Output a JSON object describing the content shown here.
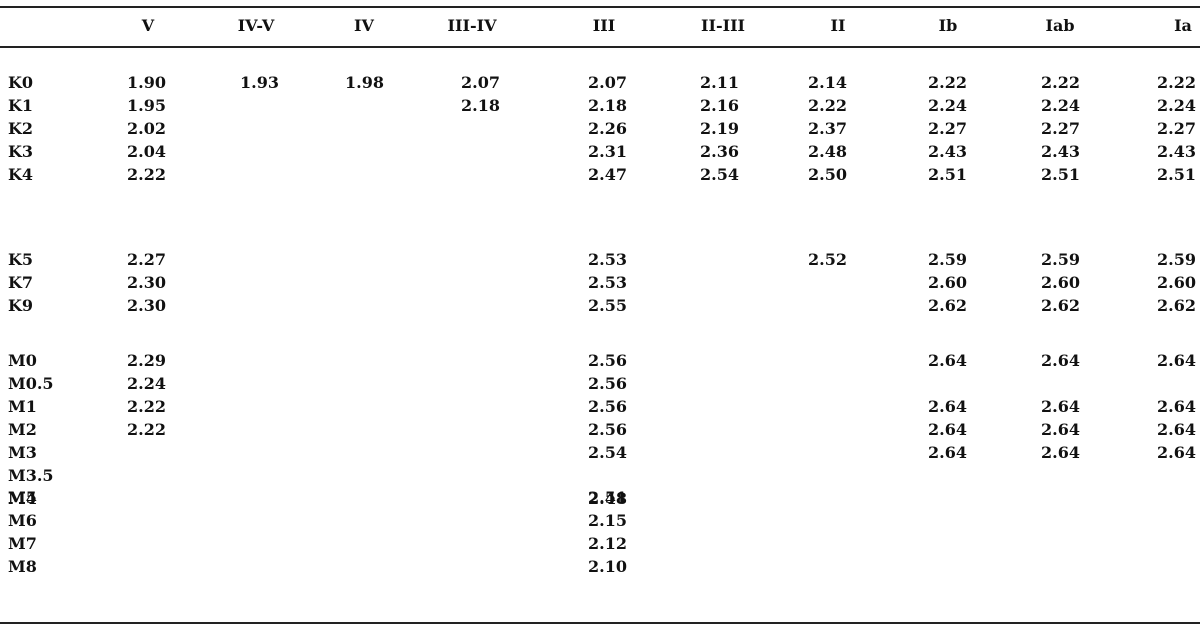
{
  "table": {
    "columns": [
      "",
      "V",
      "IV-V",
      "IV",
      "III-IV",
      "III",
      "II-III",
      "II",
      "Ib",
      "Iab",
      "Ia"
    ],
    "groups": [
      {
        "rows": [
          {
            "label": "K0",
            "values": [
              "1.90",
              "1.93",
              "1.98",
              "2.07",
              "2.07",
              "2.11",
              "2.14",
              "2.22",
              "2.22",
              "2.22"
            ]
          },
          {
            "label": "K1",
            "values": [
              "1.95",
              "",
              "",
              "2.18",
              "2.18",
              "2.16",
              "2.22",
              "2.24",
              "2.24",
              "2.24"
            ]
          },
          {
            "label": "K2",
            "values": [
              "2.02",
              "",
              "",
              "",
              "2.26",
              "2.19",
              "2.37",
              "2.27",
              "2.27",
              "2.27"
            ]
          },
          {
            "label": "K3",
            "values": [
              "2.04",
              "",
              "",
              "",
              "2.31",
              "2.36",
              "2.48",
              "2.43",
              "2.43",
              "2.43"
            ]
          },
          {
            "label": "K4",
            "values": [
              "2.22",
              "",
              "",
              "",
              "2.47",
              "2.54",
              "2.50",
              "2.51",
              "2.51",
              "2.51"
            ]
          }
        ]
      },
      {
        "rows": [
          {
            "label": "K5",
            "values": [
              "2.27",
              "",
              "",
              "",
              "2.53",
              "",
              "2.52",
              "2.59",
              "2.59",
              "2.59"
            ]
          },
          {
            "label": "K7",
            "values": [
              "2.30",
              "",
              "",
              "",
              "2.53",
              "",
              "",
              "2.60",
              "2.60",
              "2.60"
            ]
          },
          {
            "label": "K9",
            "values": [
              "2.30",
              "",
              "",
              "",
              "2.55",
              "",
              "",
              "2.62",
              "2.62",
              "2.62"
            ]
          }
        ]
      },
      {
        "rows": [
          {
            "label": "M0",
            "values": [
              "2.29",
              "",
              "",
              "",
              "2.56",
              "",
              "",
              "2.64",
              "2.64",
              "2.64"
            ]
          },
          {
            "label": "M0.5",
            "values": [
              "2.24",
              "",
              "",
              "",
              "2.56",
              "",
              "",
              "",
              "",
              ""
            ]
          },
          {
            "label": "M1",
            "values": [
              "2.22",
              "",
              "",
              "",
              "2.56",
              "",
              "",
              "2.64",
              "2.64",
              "2.64"
            ]
          },
          {
            "label": "M2",
            "values": [
              "2.22",
              "",
              "",
              "",
              "2.56",
              "",
              "",
              "2.64",
              "2.64",
              "2.64"
            ]
          },
          {
            "label": "M3",
            "values": [
              "",
              "",
              "",
              "",
              "2.54",
              "",
              "",
              "2.64",
              "2.64",
              "2.64"
            ]
          },
          {
            "label": "M3.5",
            "values": [
              "",
              "",
              "",
              "",
              "",
              "",
              "",
              "",
              "",
              ""
            ]
          },
          {
            "label": "M4",
            "values": [
              "",
              "",
              "",
              "",
              "2.48",
              "",
              "",
              "",
              "",
              ""
            ]
          }
        ]
      },
      {
        "rows": [
          {
            "label": "M5",
            "values": [
              "",
              "",
              "",
              "",
              "2.51",
              "",
              "",
              "",
              "",
              ""
            ]
          },
          {
            "label": "M6",
            "values": [
              "",
              "",
              "",
              "",
              "2.15",
              "",
              "",
              "",
              "",
              ""
            ]
          },
          {
            "label": "M7",
            "values": [
              "",
              "",
              "",
              "",
              "2.12",
              "",
              "",
              "",
              "",
              ""
            ]
          },
          {
            "label": "M8",
            "values": [
              "",
              "",
              "",
              "",
              "2.10",
              "",
              "",
              "",
              "",
              ""
            ]
          }
        ]
      }
    ]
  }
}
